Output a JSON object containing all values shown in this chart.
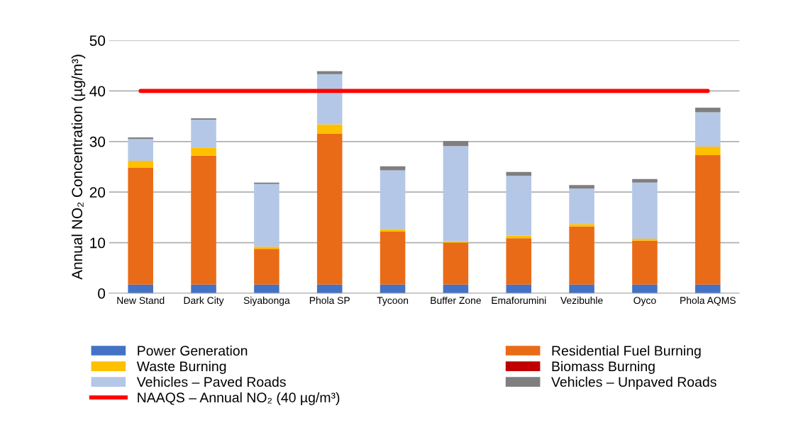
{
  "chart_data": {
    "type": "bar",
    "stacked": true,
    "ylabel": "Annual NO₂ Concentration (µg/m³)",
    "categories": [
      "New Stand",
      "Dark City",
      "Siyabonga",
      "Phola SP",
      "Tycoon",
      "Buffer Zone",
      "Emaforumini",
      "Vezibuhle",
      "Oyco",
      "Phola AQMS"
    ],
    "series": [
      {
        "name": "Power Generation",
        "color": "#4472c4",
        "values": [
          1.7,
          1.7,
          1.7,
          1.7,
          1.7,
          1.7,
          1.7,
          1.7,
          1.7,
          1.7
        ]
      },
      {
        "name": "Residential Fuel Burning",
        "color": "#ea6b17",
        "values": [
          23.1,
          25.5,
          7.1,
          29.8,
          10.5,
          8.3,
          9.2,
          11.5,
          8.7,
          25.6
        ]
      },
      {
        "name": "Waste Burning",
        "color": "#ffc000",
        "values": [
          1.4,
          1.6,
          0.4,
          1.9,
          0.5,
          0.3,
          0.5,
          0.5,
          0.4,
          1.7
        ]
      },
      {
        "name": "Biomass Burning",
        "color": "#c00000",
        "values": [
          0,
          0,
          0,
          0,
          0,
          0,
          0,
          0,
          0,
          0
        ]
      },
      {
        "name": "Vehicles – Paved Roads",
        "color": "#b4c7e7",
        "values": [
          4.3,
          5.5,
          12.4,
          9.9,
          11.6,
          18.8,
          11.8,
          7.0,
          11.1,
          6.8
        ]
      },
      {
        "name": "Vehicles – Unpaved Roads",
        "color": "#7f7f7f",
        "values": [
          0.3,
          0.3,
          0.3,
          0.6,
          0.8,
          1.0,
          0.8,
          0.7,
          0.7,
          0.9
        ]
      }
    ],
    "ref_lines": [
      {
        "axis": "y",
        "value": 40,
        "label": "NAAQS – Annual NO₂ (40 µg/m³)",
        "color": "#ff0000",
        "line_style": "solid"
      }
    ],
    "ylim": [
      0,
      50
    ],
    "yticks": [
      0,
      10,
      20,
      30,
      40,
      50
    ],
    "grid": "y",
    "legend": "bottom"
  }
}
